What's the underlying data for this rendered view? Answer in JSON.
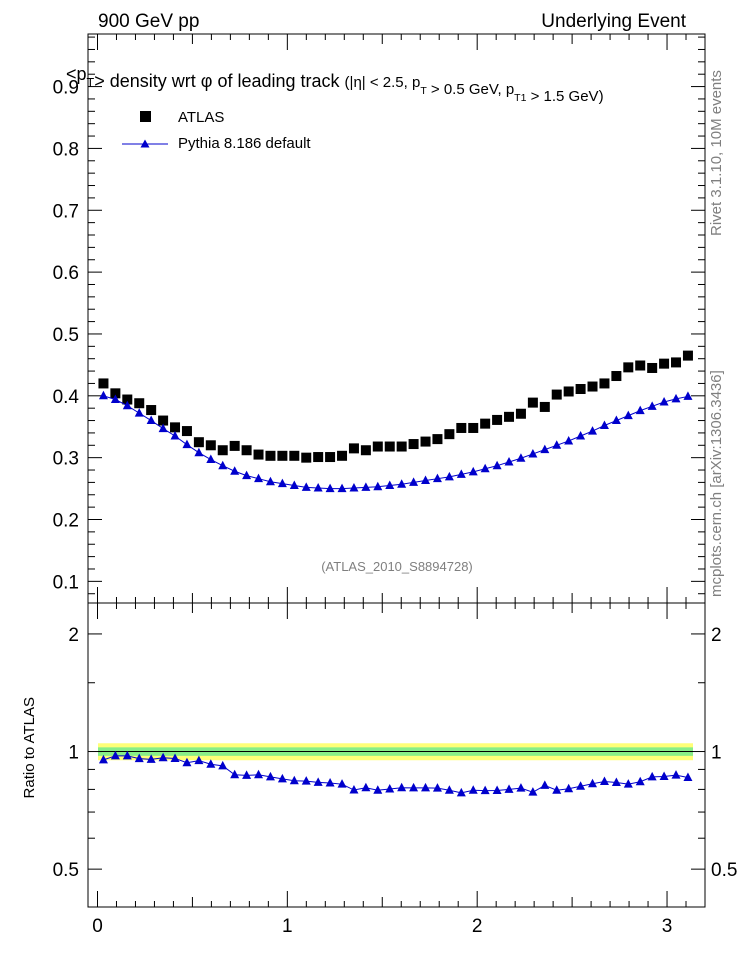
{
  "header": {
    "left": "900 GeV pp",
    "right": "Underlying Event"
  },
  "side_labels": {
    "rivet": "Rivet 3.1.10, 10M events",
    "mcplots": "mcplots.cern.ch [arXiv:1306.3436]"
  },
  "chart_data": [
    {
      "type": "scatter",
      "title_main": "<p_T> density wrt  φ of leading track",
      "title_cuts": "(|η| < 2.5, p_T > 0.5 GeV, p_T1 > 1.5 GeV)",
      "watermark": "(ATLAS_2010_S8894728)",
      "xlim": [
        -0.05,
        3.2
      ],
      "ylim": [
        0.065,
        0.985
      ],
      "yticks": [
        "0.1",
        "0.2",
        "0.3",
        "0.4",
        "0.5",
        "0.6",
        "0.7",
        "0.8",
        "0.9"
      ],
      "legend": [
        "ATLAS",
        "Pythia 8.186 default"
      ],
      "x": [
        0.0314,
        0.0942,
        0.157,
        0.2199,
        0.2827,
        0.3456,
        0.4084,
        0.4712,
        0.5341,
        0.5969,
        0.6597,
        0.7226,
        0.7854,
        0.8482,
        0.9111,
        0.9739,
        1.0367,
        1.0996,
        1.1624,
        1.2252,
        1.2881,
        1.3509,
        1.4137,
        1.4765,
        1.5394,
        1.6022,
        1.665,
        1.7279,
        1.7907,
        1.8535,
        1.9164,
        1.9792,
        2.042,
        2.1049,
        2.1677,
        2.2305,
        2.2934,
        2.3562,
        2.419,
        2.4819,
        2.5447,
        2.6075,
        2.6704,
        2.7332,
        2.796,
        2.8588,
        2.9217,
        2.9845,
        3.0473,
        3.1102
      ],
      "series": [
        {
          "name": "ATLAS",
          "values": [
            0.42,
            0.404,
            0.394,
            0.388,
            0.377,
            0.36,
            0.349,
            0.343,
            0.325,
            0.32,
            0.312,
            0.319,
            0.312,
            0.305,
            0.303,
            0.303,
            0.303,
            0.3,
            0.301,
            0.301,
            0.303,
            0.315,
            0.312,
            0.318,
            0.318,
            0.318,
            0.322,
            0.326,
            0.33,
            0.338,
            0.348,
            0.348,
            0.355,
            0.361,
            0.366,
            0.371,
            0.389,
            0.382,
            0.402,
            0.407,
            0.411,
            0.415,
            0.42,
            0.432,
            0.446,
            0.449,
            0.445,
            0.452,
            0.454,
            0.465
          ]
        },
        {
          "name": "Pythia 8.186 default",
          "values": [
            0.4,
            0.394,
            0.384,
            0.372,
            0.36,
            0.347,
            0.335,
            0.321,
            0.308,
            0.297,
            0.287,
            0.278,
            0.271,
            0.266,
            0.261,
            0.258,
            0.255,
            0.252,
            0.251,
            0.25,
            0.25,
            0.251,
            0.252,
            0.253,
            0.255,
            0.257,
            0.26,
            0.263,
            0.266,
            0.269,
            0.273,
            0.277,
            0.282,
            0.287,
            0.293,
            0.299,
            0.306,
            0.313,
            0.32,
            0.327,
            0.335,
            0.343,
            0.352,
            0.36,
            0.368,
            0.376,
            0.383,
            0.39,
            0.395,
            0.399
          ]
        }
      ]
    },
    {
      "type": "scatter",
      "ylabel": "Ratio to ATLAS",
      "xlim": [
        -0.05,
        3.2
      ],
      "ylim": [
        0.4,
        2.4
      ],
      "log_y": true,
      "yticks": [
        "0.5",
        "1",
        "2"
      ],
      "xticks": [
        "0",
        "1",
        "2",
        "3"
      ],
      "reference": 1.0,
      "bands": [
        0.05,
        0.025
      ],
      "series": [
        {
          "name": "Pythia 8.186 default",
          "values": [
            0.952,
            0.975,
            0.975,
            0.959,
            0.955,
            0.964,
            0.96,
            0.936,
            0.948,
            0.928,
            0.919,
            0.872,
            0.869,
            0.872,
            0.861,
            0.851,
            0.842,
            0.84,
            0.834,
            0.831,
            0.825,
            0.797,
            0.808,
            0.796,
            0.802,
            0.808,
            0.807,
            0.807,
            0.806,
            0.796,
            0.784,
            0.796,
            0.794,
            0.795,
            0.8,
            0.806,
            0.787,
            0.819,
            0.796,
            0.803,
            0.815,
            0.827,
            0.838,
            0.833,
            0.825,
            0.837,
            0.861,
            0.863,
            0.87,
            0.858
          ]
        }
      ]
    }
  ]
}
